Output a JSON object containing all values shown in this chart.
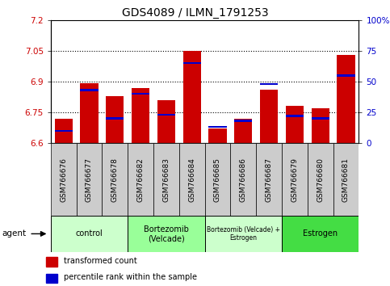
{
  "title": "GDS4089 / ILMN_1791253",
  "samples": [
    "GSM766676",
    "GSM766677",
    "GSM766678",
    "GSM766682",
    "GSM766683",
    "GSM766684",
    "GSM766685",
    "GSM766686",
    "GSM766687",
    "GSM766679",
    "GSM766680",
    "GSM766681"
  ],
  "red_values": [
    6.72,
    6.89,
    6.83,
    6.87,
    6.81,
    7.05,
    6.67,
    6.72,
    6.86,
    6.78,
    6.77,
    7.03
  ],
  "blue_values": [
    10,
    43,
    20,
    40,
    23,
    65,
    13,
    18,
    48,
    22,
    20,
    55
  ],
  "ymin": 6.6,
  "ymax": 7.2,
  "y2min": 0,
  "y2max": 100,
  "yticks": [
    6.6,
    6.75,
    6.9,
    7.05,
    7.2
  ],
  "y2ticks": [
    0,
    25,
    50,
    75,
    100
  ],
  "ytick_labels": [
    "6.6",
    "6.75",
    "6.9",
    "7.05",
    "7.2"
  ],
  "y2tick_labels": [
    "0",
    "25",
    "50",
    "75",
    "100%"
  ],
  "hlines": [
    6.75,
    6.9,
    7.05
  ],
  "bar_color": "#CC0000",
  "blue_color": "#0000CC",
  "bar_width": 0.7,
  "agent_groups": [
    {
      "label": "control",
      "start": 0,
      "end": 2,
      "color": "#CCFFCC"
    },
    {
      "label": "Bortezomib\n(Velcade)",
      "start": 3,
      "end": 5,
      "color": "#99FF99"
    },
    {
      "label": "Bortezomib (Velcade) +\nEstrogen",
      "start": 6,
      "end": 8,
      "color": "#CCFFCC"
    },
    {
      "label": "Estrogen",
      "start": 9,
      "end": 11,
      "color": "#44DD44"
    }
  ],
  "legend_items": [
    {
      "label": "transformed count",
      "color": "#CC0000"
    },
    {
      "label": "percentile rank within the sample",
      "color": "#0000CC"
    }
  ],
  "agent_label": "agent",
  "title_fontsize": 10,
  "tick_label_color_left": "#CC0000",
  "tick_label_color_right": "#0000CC",
  "gray_box_color": "#CCCCCC",
  "fig_bg": "#FFFFFF"
}
